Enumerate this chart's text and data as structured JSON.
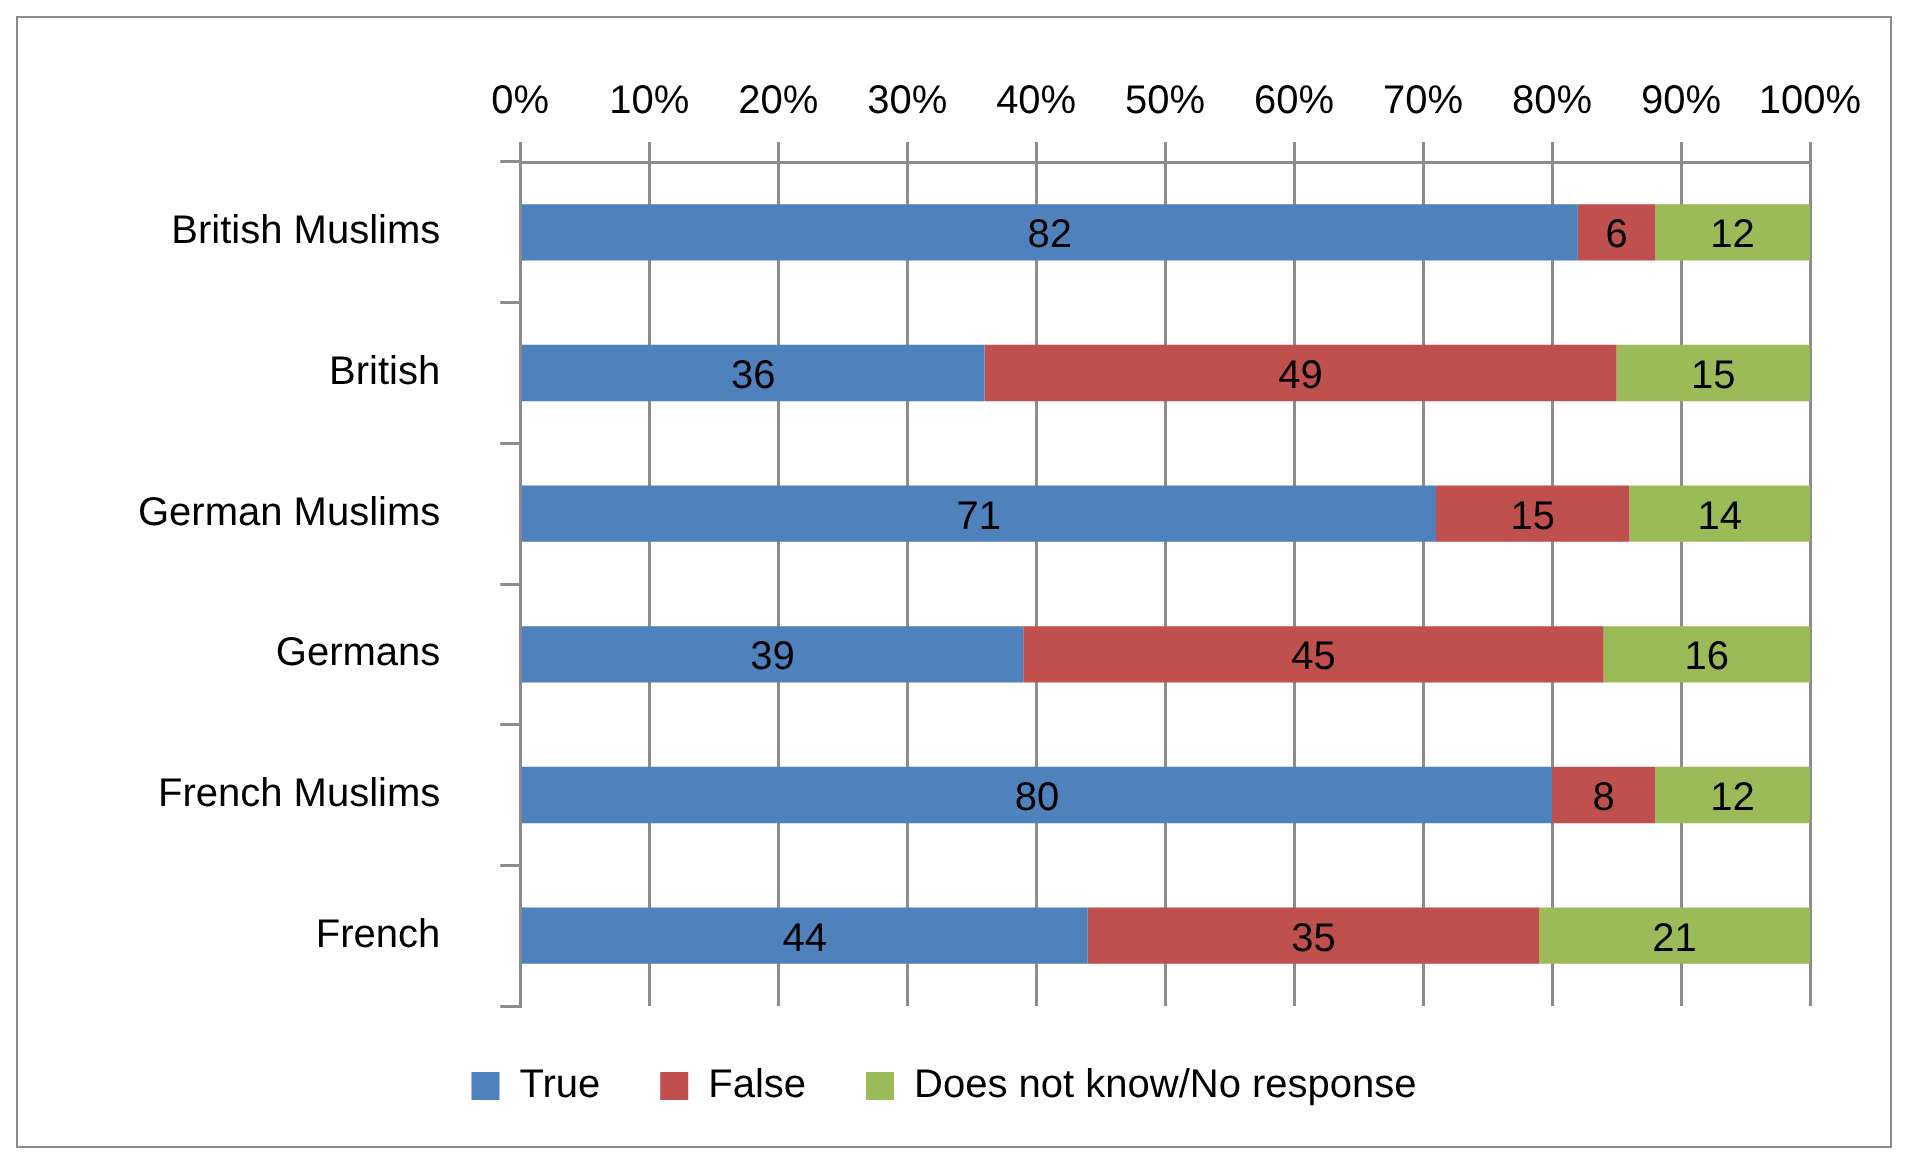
{
  "chart_data": {
    "type": "bar",
    "orientation": "horizontal",
    "stacked": true,
    "categories": [
      "British Muslims",
      "British",
      "German Muslims",
      "Germans",
      "French Muslims",
      "French"
    ],
    "series": [
      {
        "name": "True",
        "color": "#4f81bd",
        "values": [
          82,
          36,
          71,
          39,
          80,
          44
        ]
      },
      {
        "name": "False",
        "color": "#c0504d",
        "values": [
          6,
          49,
          15,
          45,
          8,
          35
        ]
      },
      {
        "name": "Does not know/No response",
        "color": "#9bbb59",
        "values": [
          12,
          15,
          14,
          16,
          12,
          21
        ]
      }
    ],
    "xlim": [
      0,
      100
    ],
    "xticks": [
      {
        "value": 0,
        "label": "0%"
      },
      {
        "value": 10,
        "label": "10%"
      },
      {
        "value": 20,
        "label": "20%"
      },
      {
        "value": 30,
        "label": "30%"
      },
      {
        "value": 40,
        "label": "40%"
      },
      {
        "value": 50,
        "label": "50%"
      },
      {
        "value": 60,
        "label": "60%"
      },
      {
        "value": 70,
        "label": "70%"
      },
      {
        "value": 80,
        "label": "80%"
      },
      {
        "value": 90,
        "label": "90%"
      },
      {
        "value": 100,
        "label": "100%"
      }
    ],
    "grid": "x",
    "legend": "bottom",
    "data_labels": true
  }
}
